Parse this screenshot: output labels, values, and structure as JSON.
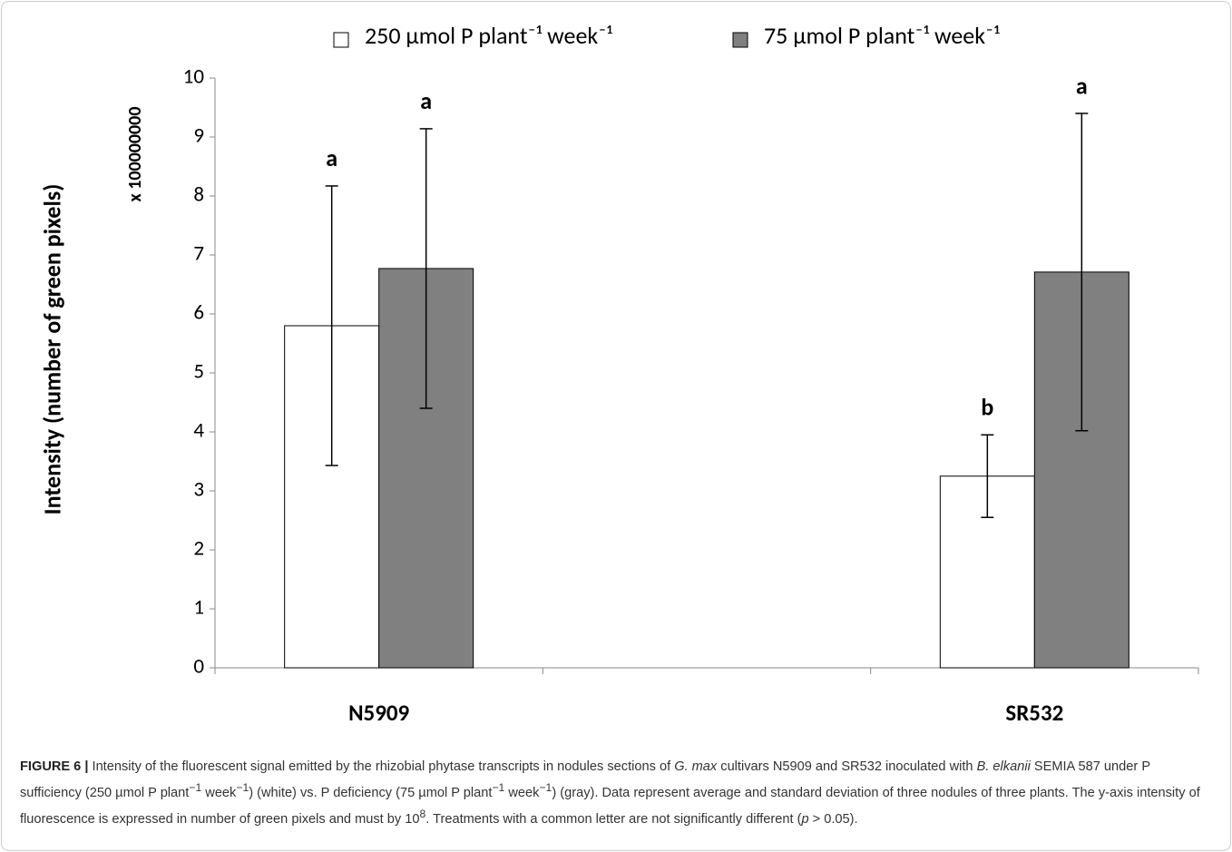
{
  "chart_data": {
    "type": "bar",
    "y_label": "Intensity (number of green pixels)",
    "y_multiplier": "x 100000000",
    "categories": [
      "N5909",
      null,
      "SR532"
    ],
    "series": [
      {
        "name": "250 µmol P plant⁻¹ week⁻¹",
        "color": "#ffffff",
        "values": [
          5.8,
          null,
          3.25
        ],
        "errors": [
          2.37,
          null,
          0.7
        ],
        "labels": [
          "a",
          null,
          "b"
        ]
      },
      {
        "name": "75 µmol P plant⁻¹ week⁻¹",
        "color": "#808080",
        "values": [
          6.77,
          null,
          6.71
        ],
        "errors": [
          2.37,
          null,
          2.69
        ],
        "labels": [
          "a",
          null,
          "a"
        ]
      }
    ],
    "ylim": [
      0,
      10
    ],
    "yticks": [
      0,
      1,
      2,
      3,
      4,
      5,
      6,
      7,
      8,
      9,
      10
    ],
    "grid": false,
    "legend": "top"
  },
  "caption": {
    "label": "FIGURE 6 |",
    "parts": [
      "Intensity of the fluorescent signal emitted by the rhizobial phytase transcripts in nodules sections of ",
      "G. max",
      " cultivars N5909 and SR532 inoculated with ",
      "B. elkanii",
      " SEMIA 587 under P sufficiency (250 µmol P plant",
      "−1",
      " week",
      "−1",
      ") (white) vs. P deficiency (75 µmol P plant",
      "−1",
      " week",
      "−1",
      ") (gray). Data represent average and standard deviation of three nodules of three plants. The y-axis intensity of fluorescence is expressed in number of green pixels and must by 10",
      "8",
      ". Treatments with a common letter are not significantly different (",
      "p",
      " > 0.05)."
    ]
  }
}
